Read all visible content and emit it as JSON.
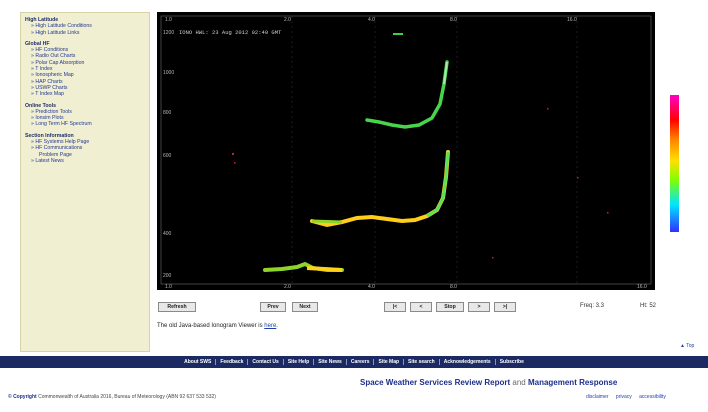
{
  "sidebar": {
    "sections": [
      {
        "title": "High Latitude",
        "items": [
          "High Latitude Conditions",
          "High Latitude Links"
        ]
      },
      {
        "title": "Global HF",
        "items": [
          "HF Conditions",
          "Radio Out Charts",
          "Polar Cap Absorption",
          "T Index",
          "Ionospheric Map",
          "HAP Charts",
          "USWP Charts",
          "T Index Map"
        ]
      },
      {
        "title": "Online Tools",
        "items": [
          "Prediction Tools",
          "Ionsim Plots",
          "Long Term HF Spectrum"
        ]
      },
      {
        "title": "Section Information",
        "items": [
          "HF Systems Help Page",
          "HF Communications"
        ],
        "sub_item": "Problem Page",
        "extra": [
          "Latest News"
        ]
      }
    ]
  },
  "ionogram": {
    "title_text": "IONO  HWL: 23 Aug 2012 02:40 GMT",
    "top_ticks": [
      "1.0",
      "2.0",
      "4.0",
      "8.0",
      "16.0"
    ],
    "left_ticks": [
      "1200",
      "1000",
      "800",
      "600",
      "400",
      "200"
    ],
    "bottom_ticks": [
      "1.0",
      "2.0",
      "4.0",
      "8.0",
      "16.0"
    ]
  },
  "controls": {
    "refresh": "Refresh",
    "prev": "Prev",
    "next": "Next",
    "first": "|<",
    "back": "<",
    "stop": "Stop",
    "fwd": ">",
    "last": ">|",
    "freq_readout": "Freq: 3.3",
    "ht_readout": "Ht: 52"
  },
  "link_line": {
    "text": "The old Java-based Ionogram Viewer is ",
    "link": "here",
    "suffix": "."
  },
  "to_top": "▲ Top",
  "footer": {
    "nav": [
      "About SWS",
      "Feedback",
      "Contact Us",
      "Site Help",
      "Site News",
      "Careers",
      "Site Map",
      "Site search",
      "Acknowledgements",
      "Subscribe"
    ],
    "review_pre": "Space Weather Services Review Report",
    "review_and": " and ",
    "review_post": "Management Response",
    "copyright_label": "© Copyright",
    "copyright_text": " Commonwealth of Australia 2016, Bureau of Meteorology (ABN 92 637 533 532)",
    "legal": [
      "disclaimer",
      "privacy",
      "accessibility"
    ]
  },
  "colors": {
    "accent": "#1c2a63",
    "sidebar_bg": "#f1efd2",
    "plot_bg": "#000000"
  }
}
